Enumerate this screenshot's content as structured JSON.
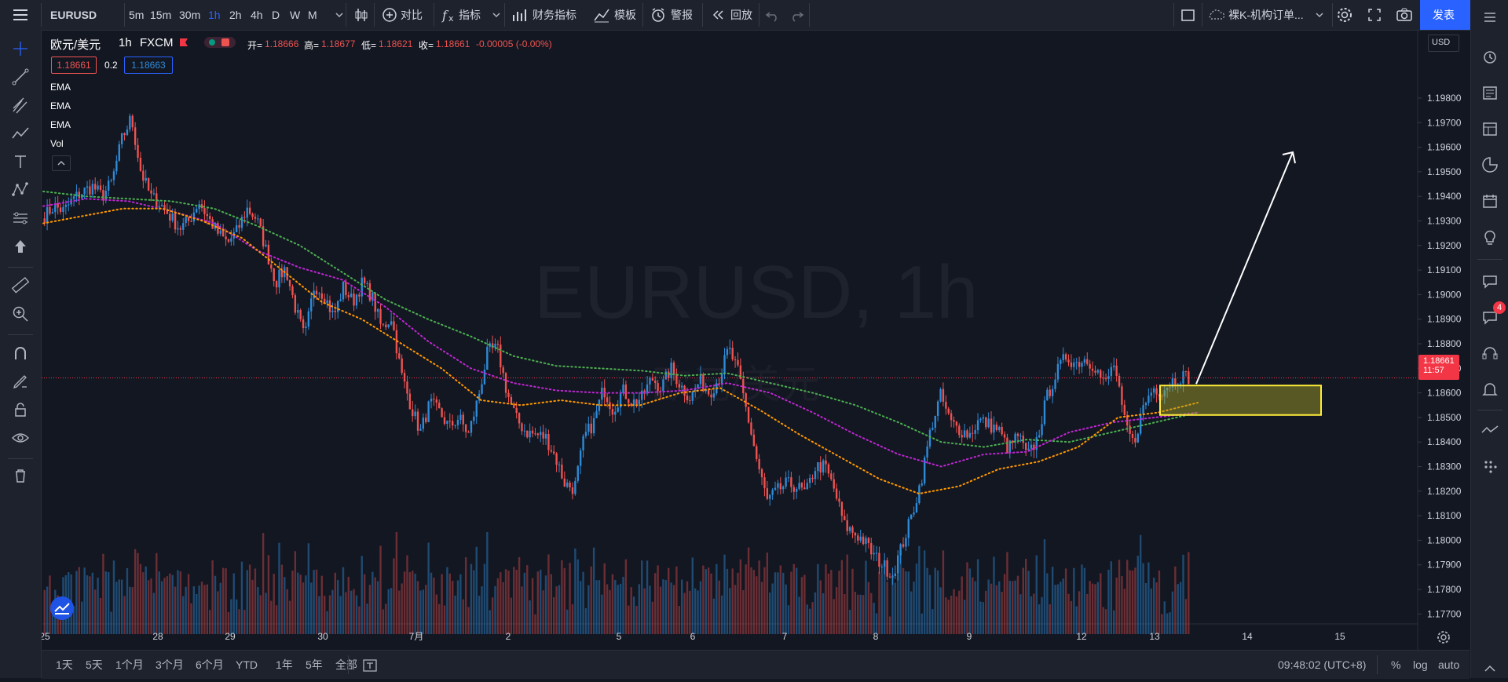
{
  "symbol": "EURUSD",
  "timeframes": [
    "5m",
    "15m",
    "30m",
    "1h",
    "2h",
    "4h",
    "D",
    "W",
    "M"
  ],
  "active_timeframe": "1h",
  "toolbar": {
    "compare": "对比",
    "indicators": "指标",
    "financials": "财务指标",
    "templates": "模板",
    "alert": "警报",
    "replay": "回放",
    "layout_name": "裸K-机构订单...",
    "publish": "发表"
  },
  "legend": {
    "name": "欧元/美元",
    "interval": "1h",
    "exchange": "FXCM",
    "o_label": "开=",
    "o": "1.18666",
    "h_label": "高=",
    "h": "1.18677",
    "l_label": "低=",
    "l": "1.18621",
    "c_label": "收=",
    "c": "1.18661",
    "change": "-0.00005 (-0.00%)",
    "bid": "1.18661",
    "spread": "0.2",
    "ask": "1.18663",
    "studies": [
      "EMA",
      "EMA",
      "EMA",
      "Vol"
    ]
  },
  "watermark": {
    "main": "EURUSD, 1h",
    "sub": "欧元/美元"
  },
  "price_axis": {
    "currency": "USD",
    "ticks": [
      "1.19800",
      "1.19700",
      "1.19600",
      "1.19500",
      "1.19400",
      "1.19300",
      "1.19200",
      "1.19100",
      "1.19000",
      "1.18900",
      "1.18800",
      "1.18700",
      "1.18600",
      "1.18500",
      "1.18400",
      "1.18300",
      "1.18200",
      "1.18100",
      "1.18000",
      "1.17900",
      "1.17800",
      "1.17700"
    ],
    "last_price": "1.18661",
    "countdown": "11:57"
  },
  "time_axis": {
    "ticks": [
      "25",
      "28",
      "29",
      "30",
      "7月",
      "2",
      "5",
      "6",
      "7",
      "8",
      "9",
      "12",
      "13",
      "14",
      "15"
    ]
  },
  "ranges": [
    "1天",
    "5天",
    "1个月",
    "3个月",
    "6个月",
    "YTD",
    "1年",
    "5年",
    "全部"
  ],
  "footer": {
    "clock": "09:48:02 (UTC+8)",
    "percent": "%",
    "log": "log",
    "auto": "auto"
  },
  "notifications": "4",
  "colors": {
    "up": "#2e8bd8",
    "down": "#ef5350",
    "ema_fast": "#ff9800",
    "ema_mid": "#c026d3",
    "ema_slow": "#4caf50",
    "zone_border": "#ffeb3b",
    "accent": "#2962ff"
  },
  "chart_data": {
    "type": "candlestick",
    "title": "EURUSD, 1h",
    "ylim": [
      1.1765,
      1.1995
    ],
    "x_categories": [
      "25",
      "28",
      "29",
      "30",
      "7月",
      "2",
      "5",
      "6",
      "7",
      "8",
      "9",
      "12",
      "13",
      "14",
      "15"
    ],
    "price_path": [
      1.1932,
      1.1936,
      1.1934,
      1.1939,
      1.1942,
      1.1944,
      1.194,
      1.1946,
      1.1963,
      1.1972,
      1.195,
      1.194,
      1.1937,
      1.1932,
      1.1927,
      1.193,
      1.1938,
      1.1931,
      1.1925,
      1.1921,
      1.1926,
      1.1935,
      1.1931,
      1.1918,
      1.1905,
      1.1911,
      1.1895,
      1.1882,
      1.1904,
      1.19,
      1.1891,
      1.1903,
      1.1897,
      1.1905,
      1.1899,
      1.1886,
      1.1891,
      1.1868,
      1.1855,
      1.1844,
      1.1856,
      1.1852,
      1.1846,
      1.185,
      1.1843,
      1.1858,
      1.1877,
      1.1878,
      1.186,
      1.1849,
      1.1844,
      1.1843,
      1.1842,
      1.1834,
      1.1823,
      1.1821,
      1.1842,
      1.1848,
      1.1862,
      1.1853,
      1.1861,
      1.1856,
      1.1858,
      1.1866,
      1.1862,
      1.187,
      1.1863,
      1.1858,
      1.1865,
      1.186,
      1.1866,
      1.1878,
      1.1868,
      1.185,
      1.1831,
      1.1816,
      1.182,
      1.1823,
      1.1822,
      1.1819,
      1.183,
      1.183,
      1.182,
      1.1806,
      1.1803,
      1.18,
      1.1794,
      1.179,
      1.1786,
      1.1798,
      1.181,
      1.1825,
      1.1846,
      1.1859,
      1.1848,
      1.1845,
      1.1843,
      1.1849,
      1.1847,
      1.1845,
      1.1837,
      1.1843,
      1.1834,
      1.1841,
      1.1858,
      1.1868,
      1.1875,
      1.1872,
      1.1874,
      1.1871,
      1.1863,
      1.1872,
      1.1849,
      1.1839,
      1.1854,
      1.1862,
      1.1861,
      1.1865,
      1.1867,
      1.1866
    ],
    "ema_fast": [
      1.1929,
      1.1932,
      1.1935,
      1.1935,
      1.193,
      1.1923,
      1.191,
      1.1897,
      1.189,
      1.188,
      1.187,
      1.1857,
      1.1855,
      1.1857,
      1.1855,
      1.1855,
      1.186,
      1.1862,
      1.1853,
      1.1843,
      1.1834,
      1.1825,
      1.1819,
      1.1822,
      1.1829,
      1.1832,
      1.1838,
      1.185,
      1.1852,
      1.1856
    ],
    "ema_mid": [
      1.1936,
      1.1939,
      1.1938,
      1.1934,
      1.1929,
      1.1918,
      1.1911,
      1.1906,
      1.1895,
      1.1881,
      1.187,
      1.1864,
      1.1861,
      1.186,
      1.186,
      1.1861,
      1.1864,
      1.186,
      1.1852,
      1.1843,
      1.1835,
      1.183,
      1.1835,
      1.1836,
      1.1844,
      1.1848,
      1.185,
      1.1852
    ],
    "ema_slow": [
      1.1942,
      1.194,
      1.1939,
      1.1938,
      1.1935,
      1.1928,
      1.192,
      1.1909,
      1.1898,
      1.189,
      1.1883,
      1.1875,
      1.1871,
      1.187,
      1.1869,
      1.1867,
      1.1868,
      1.1864,
      1.186,
      1.1855,
      1.1848,
      1.184,
      1.1838,
      1.1841,
      1.184,
      1.1844,
      1.1848,
      1.1852
    ],
    "zone": {
      "from_price": 1.1851,
      "to_price": 1.1863
    }
  }
}
